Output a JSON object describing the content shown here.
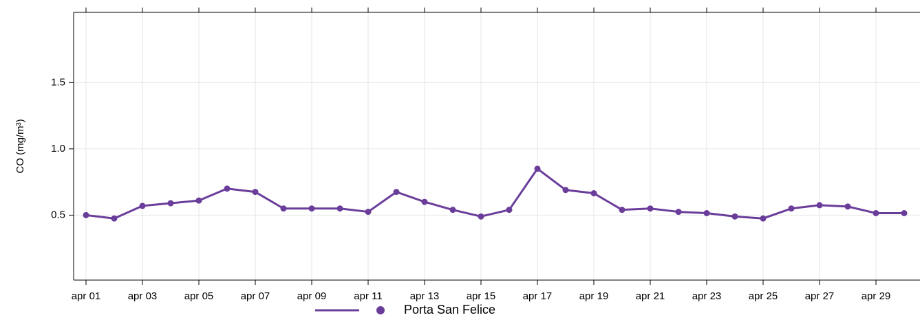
{
  "chart_data": {
    "type": "line",
    "y_label": "CO (mg/m³)",
    "categories": [
      "apr 01",
      null,
      "apr 03",
      null,
      "apr 05",
      null,
      "apr 07",
      null,
      "apr 09",
      null,
      "apr 11",
      null,
      "apr 13",
      null,
      "apr 15",
      null,
      "apr 17",
      null,
      "apr 19",
      null,
      "apr 21",
      null,
      "apr 23",
      null,
      "apr 25",
      null,
      "apr 27",
      null,
      "apr 29",
      null
    ],
    "series": [
      {
        "name": "Porta San Felice",
        "color": "#6a3d9a",
        "values": [
          0.5,
          0.475,
          0.57,
          0.59,
          0.61,
          0.7,
          0.675,
          0.55,
          0.55,
          0.55,
          0.525,
          0.675,
          0.6,
          0.54,
          0.49,
          0.54,
          0.85,
          0.69,
          0.665,
          0.54,
          0.55,
          0.525,
          0.515,
          0.49,
          0.475,
          0.55,
          0.575,
          0.565,
          0.515,
          0.515
        ]
      }
    ],
    "ylim": [
      0.01,
      2.03
    ],
    "yticks": [
      0.5,
      {
        "value": 1,
        "label": "1.0"
      },
      1.5
    ],
    "grid": true,
    "legend": "bottom"
  }
}
